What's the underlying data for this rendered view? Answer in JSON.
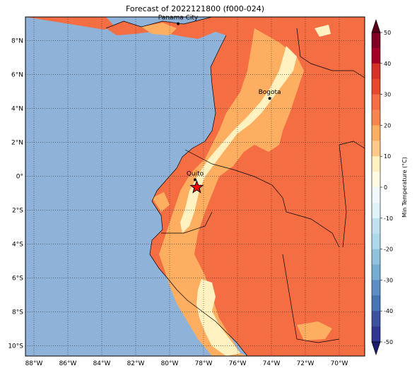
{
  "title": "Forecast of 2022121800 (f000-024)",
  "map": {
    "lon_range": [
      -88.5,
      -68.5
    ],
    "lat_range": [
      -10.6,
      9.4
    ],
    "lon_ticks": [
      "88°W",
      "86°W",
      "84°W",
      "82°W",
      "80°W",
      "78°W",
      "76°W",
      "74°W",
      "72°W",
      "70°W"
    ],
    "lon_tick_values": [
      -88,
      -86,
      -84,
      -82,
      -80,
      -78,
      -76,
      -74,
      -72,
      -70
    ],
    "lat_ticks": [
      "8°N",
      "6°N",
      "4°N",
      "2°N",
      "0°",
      "2°S",
      "4°S",
      "6°S",
      "8°S",
      "10°S"
    ],
    "lat_tick_values": [
      8,
      6,
      4,
      2,
      0,
      -2,
      -4,
      -6,
      -8,
      -10
    ],
    "grid": true,
    "ocean_color": "#8fb2d8"
  },
  "cities": [
    {
      "name": "Panama City",
      "lon": -79.5,
      "lat": 9.0
    },
    {
      "name": "Bogota",
      "lon": -74.1,
      "lat": 4.6
    },
    {
      "name": "Quito",
      "lon": -78.5,
      "lat": -0.2
    }
  ],
  "marker": {
    "type": "star",
    "lon": -78.4,
    "lat": -0.65,
    "color": "#ff0000"
  },
  "colorbar": {
    "label": "Min Temperature (°C)",
    "ticks": [
      "50",
      "40",
      "30",
      "20",
      "10",
      "0",
      "-10",
      "-20",
      "-30",
      "-40",
      "-50"
    ],
    "levels": [
      {
        "from": 45,
        "to": 50,
        "color": "#800026"
      },
      {
        "from": 40,
        "to": 45,
        "color": "#a50026"
      },
      {
        "from": 35,
        "to": 40,
        "color": "#d73027"
      },
      {
        "from": 30,
        "to": 35,
        "color": "#e8482e"
      },
      {
        "from": 25,
        "to": 30,
        "color": "#f46d43"
      },
      {
        "from": 20,
        "to": 25,
        "color": "#f6854f"
      },
      {
        "from": 15,
        "to": 20,
        "color": "#fdae61"
      },
      {
        "from": 10,
        "to": 15,
        "color": "#fdc98a"
      },
      {
        "from": 5,
        "to": 10,
        "color": "#fff2c0"
      },
      {
        "from": 0,
        "to": 5,
        "color": "#fffbe2"
      },
      {
        "from": -5,
        "to": 0,
        "color": "#f1f9fd"
      },
      {
        "from": -10,
        "to": -5,
        "color": "#e0f3f8"
      },
      {
        "from": -15,
        "to": -10,
        "color": "#c0e2ee"
      },
      {
        "from": -20,
        "to": -15,
        "color": "#abd9e9"
      },
      {
        "from": -25,
        "to": -20,
        "color": "#8fc3dd"
      },
      {
        "from": -30,
        "to": -25,
        "color": "#74add1"
      },
      {
        "from": -35,
        "to": -30,
        "color": "#5b8ec4"
      },
      {
        "from": -40,
        "to": -35,
        "color": "#4575b4"
      },
      {
        "from": -45,
        "to": -40,
        "color": "#3b52a0"
      },
      {
        "from": -50,
        "to": -45,
        "color": "#313695"
      }
    ],
    "extend_low_color": "#1b1f6b",
    "extend_high_color": "#5a001a"
  },
  "fill_colors": {
    "c30": "#f46d43",
    "c20": "#fa8f57",
    "c15": "#fdae61",
    "c10": "#fff2c0"
  }
}
